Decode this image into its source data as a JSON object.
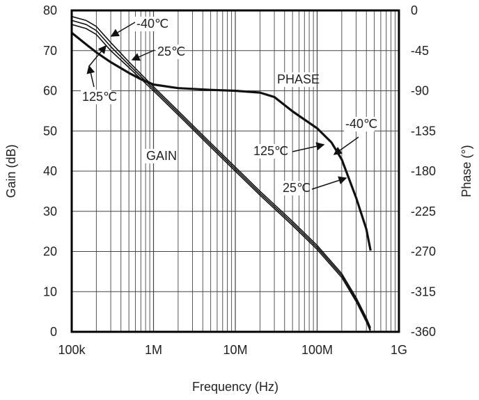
{
  "chart_data": {
    "type": "line",
    "xlabel": "Frequency (Hz)",
    "ylabel": "Gain (dB)",
    "y2label": "Phase (°)",
    "xscale": "log",
    "xlim": [
      100000,
      1000000000
    ],
    "ylim": [
      0,
      80
    ],
    "y2lim": [
      -360,
      0
    ],
    "grid": true,
    "x_ticks": [
      {
        "v": 100000,
        "label": "100k"
      },
      {
        "v": 1000000,
        "label": "1M"
      },
      {
        "v": 10000000,
        "label": "10M"
      },
      {
        "v": 100000000,
        "label": "100M"
      },
      {
        "v": 1000000000,
        "label": "1G"
      }
    ],
    "y_ticks": [
      "0",
      "10",
      "20",
      "30",
      "40",
      "50",
      "60",
      "70",
      "80"
    ],
    "y2_ticks": [
      "0",
      "-45",
      "-90",
      "-135",
      "-180",
      "-225",
      "-270",
      "-315",
      "-360"
    ],
    "series": [
      {
        "name": "-40℃",
        "axis": "gain",
        "x": [
          100000,
          150000,
          200000,
          300000,
          500000,
          1000000,
          2000000,
          5000000,
          10000000,
          20000000,
          50000000,
          100000000,
          200000000,
          300000000,
          400000000,
          450000000
        ],
        "values": [
          78.5,
          77.5,
          76,
          72,
          67.2,
          61,
          55,
          47,
          41,
          35,
          27.5,
          21.5,
          14.5,
          8.5,
          3.5,
          1
        ]
      },
      {
        "name": "25℃",
        "axis": "gain",
        "x": [
          100000,
          150000,
          200000,
          300000,
          500000,
          1000000,
          2000000,
          5000000,
          10000000,
          20000000,
          50000000,
          100000000,
          200000000,
          300000000,
          400000000,
          450000000
        ],
        "values": [
          77.5,
          76.5,
          75,
          71,
          66.5,
          60.5,
          54.5,
          46.5,
          40.5,
          34.5,
          27,
          21,
          14,
          8,
          3,
          0.5
        ]
      },
      {
        "name": "125℃",
        "axis": "gain",
        "x": [
          100000,
          150000,
          200000,
          300000,
          500000,
          1000000,
          2000000,
          5000000,
          10000000,
          20000000,
          50000000,
          100000000,
          200000000,
          300000000,
          400000000,
          450000000
        ],
        "values": [
          76.5,
          75.5,
          74,
          70,
          65.8,
          60,
          54,
          46,
          40,
          34,
          26.5,
          20.5,
          13.5,
          7.5,
          2.5,
          0
        ]
      },
      {
        "name": "PHASE",
        "axis": "phase",
        "x": [
          100000,
          150000,
          200000,
          300000,
          500000,
          700000,
          1000000,
          2000000,
          5000000,
          10000000,
          20000000,
          30000000,
          50000000,
          100000000,
          150000000,
          200000000,
          300000000,
          400000000,
          450000000
        ],
        "values": [
          -25,
          -38,
          -47,
          -58,
          -70,
          -77,
          -83,
          -87,
          -89,
          -90,
          -92,
          -97,
          -113,
          -132,
          -148,
          -167,
          -210,
          -245,
          -269
        ]
      }
    ],
    "annotations": [
      {
        "text": "-40℃"
      },
      {
        "text": "25℃"
      },
      {
        "text": "125℃"
      },
      {
        "text": "PHASE"
      },
      {
        "text": "GAIN"
      },
      {
        "text": "125℃"
      },
      {
        "text": "-40℃"
      },
      {
        "text": "25℃"
      }
    ]
  }
}
